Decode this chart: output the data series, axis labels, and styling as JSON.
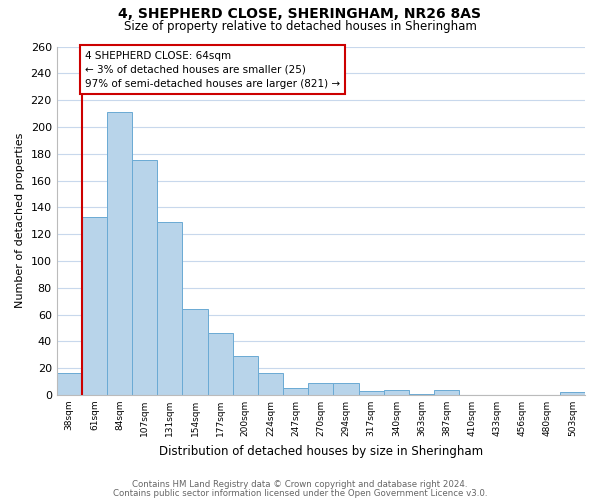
{
  "title1": "4, SHEPHERD CLOSE, SHERINGHAM, NR26 8AS",
  "title2": "Size of property relative to detached houses in Sheringham",
  "xlabel": "Distribution of detached houses by size in Sheringham",
  "ylabel": "Number of detached properties",
  "bar_labels": [
    "38sqm",
    "61sqm",
    "84sqm",
    "107sqm",
    "131sqm",
    "154sqm",
    "177sqm",
    "200sqm",
    "224sqm",
    "247sqm",
    "270sqm",
    "294sqm",
    "317sqm",
    "340sqm",
    "363sqm",
    "387sqm",
    "410sqm",
    "433sqm",
    "456sqm",
    "480sqm",
    "503sqm"
  ],
  "bar_heights": [
    16,
    133,
    211,
    175,
    129,
    64,
    46,
    29,
    16,
    5,
    9,
    9,
    3,
    4,
    1,
    4,
    0,
    0,
    0,
    0,
    2
  ],
  "bar_color": "#b8d4ea",
  "bar_edge_color": "#6aaad4",
  "vline_x_bar": 1,
  "vline_color": "#cc0000",
  "annotation_text": "4 SHEPHERD CLOSE: 64sqm\n← 3% of detached houses are smaller (25)\n97% of semi-detached houses are larger (821) →",
  "annotation_box_edgecolor": "#cc0000",
  "ylim": [
    0,
    260
  ],
  "yticks": [
    0,
    20,
    40,
    60,
    80,
    100,
    120,
    140,
    160,
    180,
    200,
    220,
    240,
    260
  ],
  "footer1": "Contains HM Land Registry data © Crown copyright and database right 2024.",
  "footer2": "Contains public sector information licensed under the Open Government Licence v3.0.",
  "background_color": "#ffffff",
  "grid_color": "#c8d8ec"
}
